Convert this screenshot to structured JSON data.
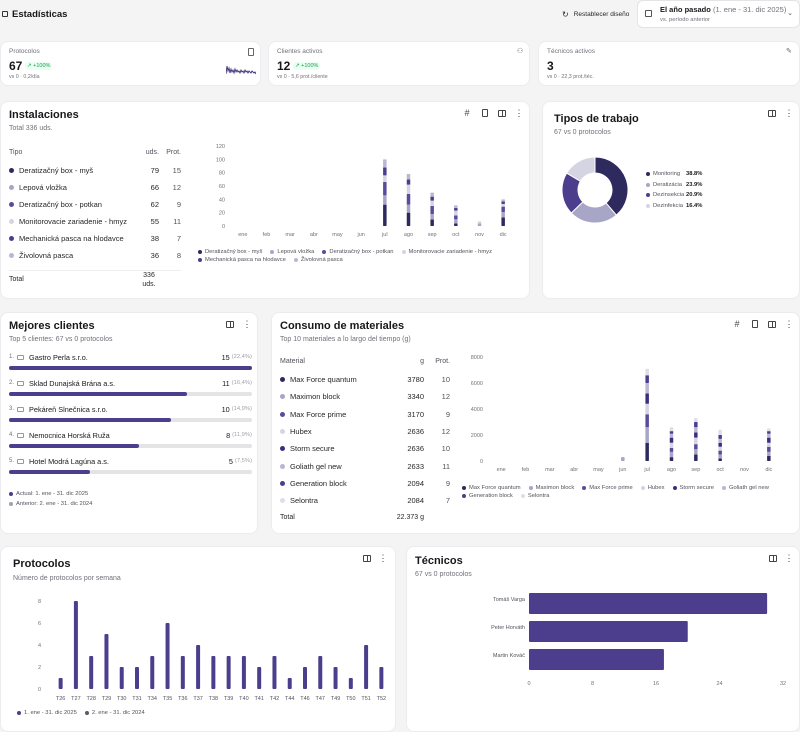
{
  "header": {
    "title": "Estadísticas",
    "reset_label": "Restablecer diseño",
    "date_range": "El año pasado",
    "date_detail": "(1. ene - 31. dic 2025)",
    "date_compare": "vs. período anterior"
  },
  "kpis": [
    {
      "label": "Protocolos",
      "value": "67",
      "delta": "+100%",
      "sub": "vs 0 · 0,2/día"
    },
    {
      "label": "Clientes activos",
      "value": "12",
      "delta": "+100%",
      "sub": "vs 0 · 5,6 prot./cliente"
    },
    {
      "label": "Técnicos activos",
      "value": "3",
      "delta": "",
      "sub": "vs 0 · 22,3 prot./téc."
    }
  ],
  "installations": {
    "title": "Instalaciones",
    "subtitle": "Total 336 uds.",
    "col_type": "Tipo",
    "col_units": "uds.",
    "col_prot": "Prot.",
    "rows": [
      {
        "name": "Deratizačný box - myš",
        "units": "79",
        "prot": "15",
        "color": "#2e2a5e"
      },
      {
        "name": "Lepová vložka",
        "units": "66",
        "prot": "12",
        "color": "#a7a6c6"
      },
      {
        "name": "Deratizačný box - potkan",
        "units": "62",
        "prot": "9",
        "color": "#5b4b9a"
      },
      {
        "name": "Monitorovacie zariadenie - hmyz",
        "units": "55",
        "prot": "11",
        "color": "#d5d4e3"
      },
      {
        "name": "Mechanická pasca na hlodavce",
        "units": "38",
        "prot": "7",
        "color": "#4c3e8c"
      },
      {
        "name": "Živolovná pasca",
        "units": "36",
        "prot": "8",
        "color": "#b9b7d2"
      }
    ],
    "total_label": "Total",
    "total_value": "336",
    "total_unit": "uds."
  },
  "worktypes": {
    "title": "Tipos de trabajo",
    "subtitle": "67 vs 0 protocolos"
  },
  "clients": {
    "title": "Mejores clientes",
    "subtitle": "Top 5 clientes: 67 vs 0 protocolos",
    "rows": [
      {
        "rank": "1.",
        "name": "Gastro Perla s.r.o.",
        "count": "15",
        "pct": "(22,4%)",
        "fill": 1.0
      },
      {
        "rank": "2.",
        "name": "Sklad Dunajská Brána a.s.",
        "count": "11",
        "pct": "(16,4%)",
        "fill": 0.733
      },
      {
        "rank": "3.",
        "name": "Pekáreň Slnečnica s.r.o.",
        "count": "10",
        "pct": "(14,9%)",
        "fill": 0.667
      },
      {
        "rank": "4.",
        "name": "Nemocnica Horská Ruža",
        "count": "8",
        "pct": "(11,9%)",
        "fill": 0.533
      },
      {
        "rank": "5.",
        "name": "Hotel Modrá Lagúna a.s.",
        "count": "5",
        "pct": "(7,5%)",
        "fill": 0.333
      }
    ],
    "legend_current": "Actual: 1. ene - 31. dic 2025",
    "legend_previous": "Anterior: 2. ene - 31. dic 2024"
  },
  "materials": {
    "title": "Consumo de materiales",
    "subtitle": "Top 10 materiales a lo largo del tiempo (g)",
    "col_mat": "Material",
    "col_g": "g",
    "col_prot": "Prot.",
    "rows": [
      {
        "name": "Max Force quantum",
        "g": "3780",
        "prot": "10",
        "color": "#2e2a5e"
      },
      {
        "name": "Maximon block",
        "g": "3340",
        "prot": "12",
        "color": "#a7a6c6"
      },
      {
        "name": "Max Force prime",
        "g": "3170",
        "prot": "9",
        "color": "#5b4b9a"
      },
      {
        "name": "Hubex",
        "g": "2636",
        "prot": "12",
        "color": "#d5d4e3"
      },
      {
        "name": "Storm secure",
        "g": "2636",
        "prot": "10",
        "color": "#3b2f7d"
      },
      {
        "name": "Goliath gel new",
        "g": "2633",
        "prot": "11",
        "color": "#b9b7d2"
      },
      {
        "name": "Generation block",
        "g": "2094",
        "prot": "9",
        "color": "#4c3e8c"
      },
      {
        "name": "Selontra",
        "g": "2084",
        "prot": "7",
        "color": "#dedde9"
      }
    ],
    "total_label": "Total",
    "total_value": "22.373 g"
  },
  "protocols": {
    "title": "Protocolos",
    "subtitle": "Número de protocolos por semana",
    "legend_current": "1. ene - 31. dic 2025",
    "legend_previous": "2. ene - 31. dic 2024"
  },
  "technicians": {
    "title": "Técnicos",
    "subtitle": "67 vs 0 protocolos"
  },
  "chart_data": [
    {
      "type": "bar",
      "title": "Instalaciones",
      "categories": [
        "ene",
        "feb",
        "mar",
        "abr",
        "may",
        "jun",
        "jul",
        "ago",
        "sep",
        "oct",
        "nov",
        "dic"
      ],
      "ylim": [
        0,
        120
      ],
      "yticks": [
        0,
        20,
        40,
        60,
        80,
        100,
        120
      ],
      "series": [
        {
          "name": "Deratizačný box - myš",
          "values": [
            0,
            0,
            0,
            0,
            0,
            0,
            32,
            20,
            10,
            4,
            0,
            13
          ],
          "color": "#2e2a5e"
        },
        {
          "name": "Lepová vložka",
          "values": [
            0,
            0,
            0,
            0,
            0,
            0,
            14,
            12,
            8,
            6,
            4,
            8
          ],
          "color": "#a7a6c6"
        },
        {
          "name": "Deratizačný box - potkan",
          "values": [
            0,
            0,
            0,
            0,
            0,
            0,
            20,
            16,
            12,
            6,
            0,
            8
          ],
          "color": "#5b4b9a"
        },
        {
          "name": "Monitorovacie zariadenie - hmyz",
          "values": [
            0,
            0,
            0,
            0,
            0,
            0,
            10,
            14,
            8,
            7,
            3,
            4
          ],
          "color": "#d5d4e3"
        },
        {
          "name": "Mechanická pasca na hlodavce",
          "values": [
            0,
            0,
            0,
            0,
            0,
            0,
            12,
            8,
            6,
            4,
            0,
            4
          ],
          "color": "#4c3e8c"
        },
        {
          "name": "Živolovná pasca",
          "values": [
            0,
            0,
            0,
            0,
            0,
            0,
            12,
            8,
            6,
            4,
            0,
            3
          ],
          "color": "#b9b7d2"
        }
      ]
    },
    {
      "type": "pie",
      "title": "Tipos de trabajo",
      "categories": [
        "Monitoring",
        "Deratizácia",
        "Dezinsekcia",
        "Dezinfekcia"
      ],
      "values": [
        38.8,
        23.9,
        20.9,
        16.4
      ],
      "labels": [
        "38.8%",
        "23.9%",
        "20.9%",
        "16.4%"
      ],
      "colors": [
        "#2e2a5e",
        "#a7a6c6",
        "#4c3e8c",
        "#d5d4e3"
      ]
    },
    {
      "type": "bar",
      "title": "Consumo de materiales",
      "categories": [
        "ene",
        "feb",
        "mar",
        "abr",
        "may",
        "jun",
        "jul",
        "ago",
        "sep",
        "oct",
        "nov",
        "dic"
      ],
      "ylim": [
        0,
        8000
      ],
      "yticks": [
        0,
        2000,
        4000,
        6000,
        8000
      ],
      "series": [
        {
          "name": "Max Force quantum",
          "values": [
            0,
            0,
            0,
            0,
            0,
            0,
            1400,
            300,
            500,
            200,
            0,
            400
          ],
          "color": "#2e2a5e"
        },
        {
          "name": "Maximon block",
          "values": [
            0,
            0,
            0,
            0,
            0,
            300,
            1200,
            400,
            400,
            300,
            0,
            300
          ],
          "color": "#a7a6c6"
        },
        {
          "name": "Max Force prime",
          "values": [
            0,
            0,
            0,
            0,
            0,
            0,
            1000,
            300,
            400,
            300,
            0,
            400
          ],
          "color": "#5b4b9a"
        },
        {
          "name": "Hubex",
          "values": [
            0,
            0,
            0,
            0,
            0,
            0,
            800,
            400,
            500,
            300,
            0,
            300
          ],
          "color": "#d5d4e3"
        },
        {
          "name": "Storm secure",
          "values": [
            0,
            0,
            0,
            0,
            0,
            0,
            800,
            400,
            400,
            300,
            0,
            400
          ],
          "color": "#3b2f7d"
        },
        {
          "name": "Goliath gel new",
          "values": [
            0,
            0,
            0,
            0,
            0,
            0,
            800,
            300,
            400,
            300,
            0,
            300
          ],
          "color": "#b9b7d2"
        },
        {
          "name": "Generation block",
          "values": [
            0,
            0,
            0,
            0,
            0,
            0,
            600,
            200,
            400,
            300,
            0,
            200
          ],
          "color": "#4c3e8c"
        },
        {
          "name": "Selontra",
          "values": [
            0,
            0,
            0,
            0,
            0,
            0,
            500,
            300,
            300,
            400,
            0,
            200
          ],
          "color": "#dedde9"
        }
      ]
    },
    {
      "type": "bar",
      "title": "Protocolos",
      "categories": [
        "T26",
        "T27",
        "T28",
        "T29",
        "T30",
        "T31",
        "T34",
        "T35",
        "T36",
        "T37",
        "T38",
        "T39",
        "T40",
        "T41",
        "T42",
        "T44",
        "T46",
        "T47",
        "T49",
        "T50",
        "T51",
        "T52"
      ],
      "values": [
        1,
        8,
        3,
        5,
        2,
        2,
        3,
        6,
        3,
        4,
        3,
        3,
        3,
        2,
        3,
        1,
        2,
        3,
        2,
        1,
        4,
        2
      ],
      "ylim": [
        0,
        8
      ],
      "yticks": [
        0,
        2,
        4,
        6,
        8
      ]
    },
    {
      "type": "bar",
      "title": "Técnicos",
      "orientation": "horizontal",
      "categories": [
        "Tomáš Varga",
        "Peter Horváth",
        "Martin Kováč"
      ],
      "values": [
        30,
        20,
        17
      ],
      "xlim": [
        0,
        32
      ],
      "xticks": [
        0,
        8,
        16,
        24,
        32
      ]
    }
  ]
}
